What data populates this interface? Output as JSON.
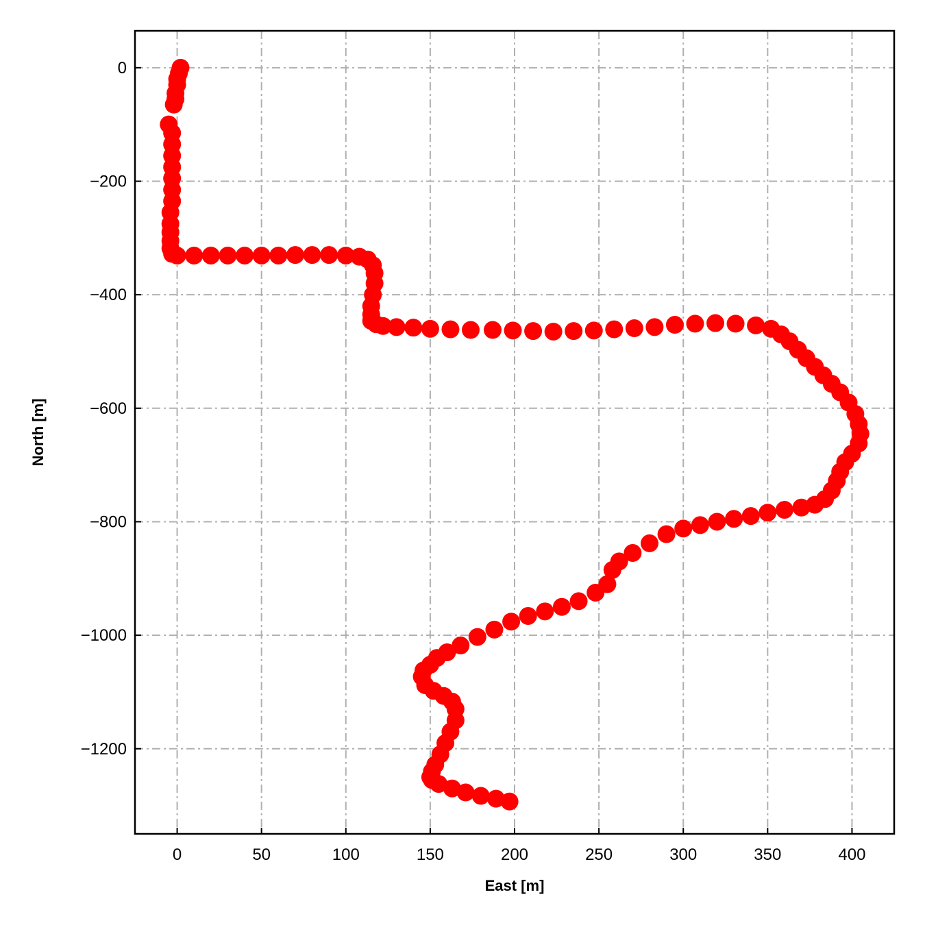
{
  "chart_data": {
    "type": "scatter",
    "title": "",
    "xlabel": "East [m]",
    "ylabel": "North [m]",
    "xlim": [
      -25,
      425
    ],
    "ylim": [
      -1350,
      65
    ],
    "xticks": [
      0,
      50,
      100,
      150,
      200,
      250,
      300,
      350,
      400
    ],
    "yticks": [
      0,
      -200,
      -400,
      -600,
      -800,
      -1000,
      -1200
    ],
    "xtick_labels": [
      "0",
      "50",
      "100",
      "150",
      "200",
      "250",
      "300",
      "350",
      "400"
    ],
    "ytick_labels": [
      "0",
      "−200",
      "−400",
      "−600",
      "−800",
      "−1000",
      "−1200"
    ],
    "grid": true,
    "legend": "none",
    "marker_color": "#ff0000",
    "series": [
      {
        "x": [
          2,
          1,
          0,
          0,
          -1,
          -1,
          -2,
          -5,
          -3,
          -3,
          -3,
          -3,
          -3,
          -3,
          -3,
          -4,
          -4,
          -4,
          -4,
          -4,
          -3,
          0,
          10,
          20,
          30,
          40,
          50,
          60,
          70,
          80,
          90,
          100,
          108,
          113,
          116,
          117,
          117,
          116,
          115,
          115,
          115,
          118,
          122,
          130,
          140,
          150,
          162,
          174,
          187,
          199,
          211,
          223,
          235,
          247,
          259,
          271,
          283,
          295,
          307,
          319,
          331,
          343,
          352,
          358,
          363,
          368,
          373,
          378,
          383,
          388,
          393,
          398,
          402,
          404,
          405,
          404,
          400,
          396,
          393,
          391,
          388,
          384,
          378,
          370,
          360,
          350,
          340,
          330,
          320,
          310,
          300,
          290,
          280,
          270,
          262,
          258,
          255,
          248,
          238,
          228,
          218,
          208,
          198,
          188,
          178,
          168,
          160,
          154,
          150,
          146,
          145,
          147,
          152,
          158,
          163,
          165,
          165,
          162,
          159,
          156,
          153,
          151,
          150,
          151,
          155,
          163,
          171,
          180,
          189,
          197
        ],
        "y": [
          0,
          -10,
          -20,
          -30,
          -45,
          -55,
          -65,
          -100,
          -115,
          -135,
          -155,
          -175,
          -195,
          -215,
          -235,
          -255,
          -275,
          -290,
          -305,
          -318,
          -328,
          -331,
          -331,
          -331,
          -331,
          -331,
          -331,
          -331,
          -330,
          -330,
          -330,
          -331,
          -333,
          -338,
          -348,
          -362,
          -380,
          -400,
          -420,
          -435,
          -446,
          -452,
          -455,
          -457,
          -458,
          -460,
          -461,
          -462,
          -462,
          -463,
          -464,
          -465,
          -464,
          -463,
          -461,
          -459,
          -457,
          -453,
          -451,
          -450,
          -451,
          -454,
          -460,
          -470,
          -482,
          -497,
          -512,
          -527,
          -542,
          -557,
          -572,
          -590,
          -610,
          -628,
          -645,
          -662,
          -680,
          -695,
          -712,
          -728,
          -745,
          -760,
          -770,
          -775,
          -779,
          -784,
          -790,
          -795,
          -800,
          -806,
          -812,
          -822,
          -838,
          -855,
          -870,
          -885,
          -910,
          -925,
          -940,
          -950,
          -958,
          -966,
          -976,
          -990,
          -1003,
          -1018,
          -1030,
          -1040,
          -1052,
          -1062,
          -1073,
          -1088,
          -1098,
          -1107,
          -1117,
          -1130,
          -1150,
          -1170,
          -1190,
          -1210,
          -1228,
          -1240,
          -1250,
          -1255,
          -1262,
          -1270,
          -1277,
          -1283,
          -1288,
          -1293
        ]
      }
    ]
  }
}
